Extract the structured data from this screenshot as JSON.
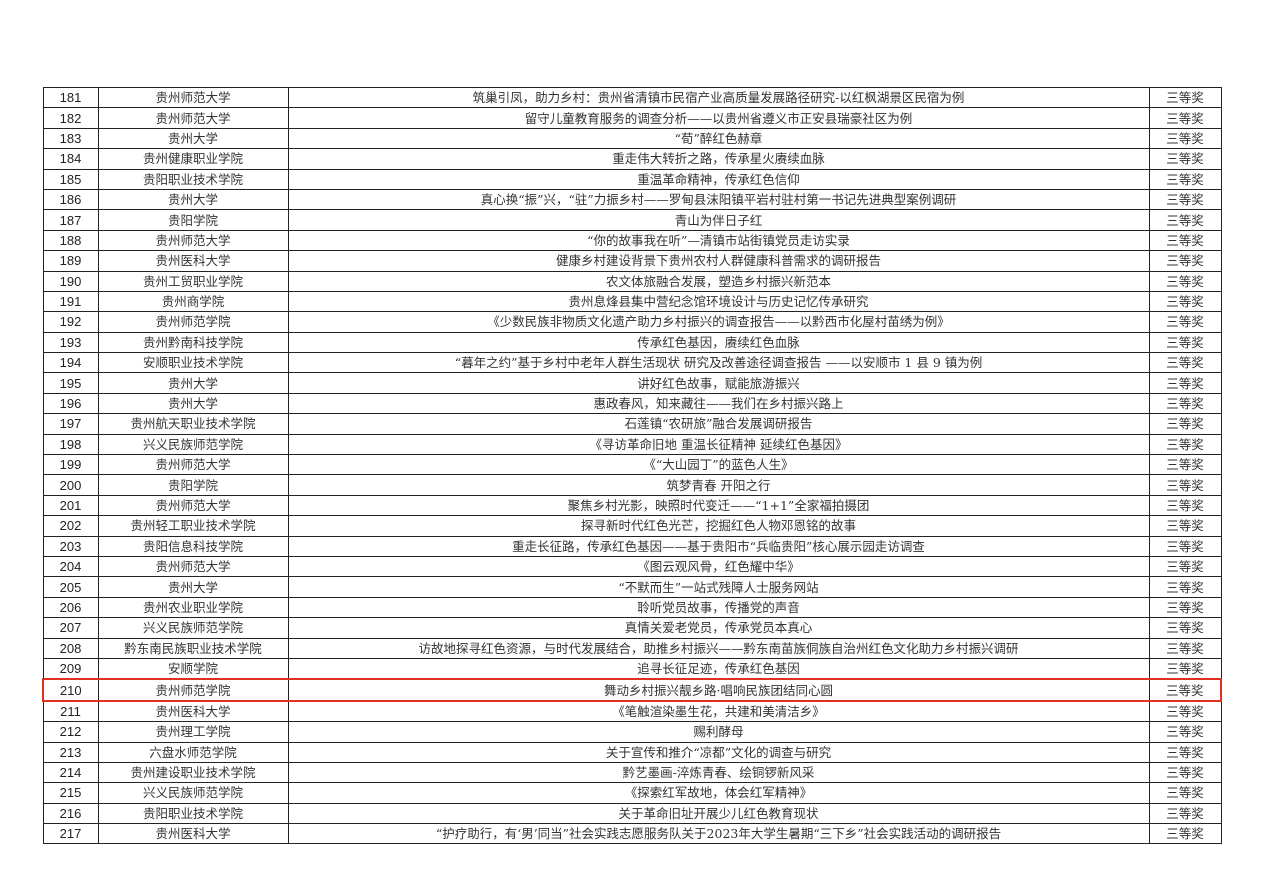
{
  "highlight_color": "#e0301e",
  "highlighted_row": "210",
  "rows": [
    [
      "181",
      "贵州师范大学",
      "筑巢引凤，助力乡村：贵州省清镇市民宿产业高质量发展路径研究-以红枫湖景区民宿为例",
      "三等奖"
    ],
    [
      "182",
      "贵州师范大学",
      "留守儿童教育服务的调查分析——以贵州省遵义市正安县瑞豪社区为例",
      "三等奖"
    ],
    [
      "183",
      "贵州大学",
      "“荀”醉红色赫章",
      "三等奖"
    ],
    [
      "184",
      "贵州健康职业学院",
      "重走伟大转折之路，传承星火赓续血脉",
      "三等奖"
    ],
    [
      "185",
      "贵阳职业技术学院",
      "重温革命精神，传承红色信仰",
      "三等奖"
    ],
    [
      "186",
      "贵州大学",
      "真心换“振”兴，“驻”力振乡村——罗甸县沫阳镇平岩村驻村第一书记先进典型案例调研",
      "三等奖"
    ],
    [
      "187",
      "贵阳学院",
      "青山为伴日子红",
      "三等奖"
    ],
    [
      "188",
      "贵州师范大学",
      "“你的故事我在听”—清镇市站街镇党员走访实录",
      "三等奖"
    ],
    [
      "189",
      "贵州医科大学",
      "健康乡村建设背景下贵州农村人群健康科普需求的调研报告",
      "三等奖"
    ],
    [
      "190",
      "贵州工贸职业学院",
      "农文体旅融合发展，塑造乡村振兴新范本",
      "三等奖"
    ],
    [
      "191",
      "贵州商学院",
      "贵州息烽县集中营纪念馆环境设计与历史记忆传承研究",
      "三等奖"
    ],
    [
      "192",
      "贵州师范学院",
      "《少数民族非物质文化遗产助力乡村振兴的调查报告——以黔西市化屋村苗绣为例》",
      "三等奖"
    ],
    [
      "193",
      "贵州黔南科技学院",
      "传承红色基因，赓续红色血脉",
      "三等奖"
    ],
    [
      "194",
      "安顺职业技术学院",
      "“暮年之约”基于乡村中老年人群生活现状 研究及改善途径调查报告 ——以安顺市 1 县 9 镇为例",
      "三等奖"
    ],
    [
      "195",
      "贵州大学",
      "讲好红色故事，赋能旅游振兴",
      "三等奖"
    ],
    [
      "196",
      "贵州大学",
      "惠政春风，知来藏往——我们在乡村振兴路上",
      "三等奖"
    ],
    [
      "197",
      "贵州航天职业技术学院",
      "石莲镇“农研旅”融合发展调研报告",
      "三等奖"
    ],
    [
      "198",
      "兴义民族师范学院",
      "《寻访革命旧地 重温长征精神 延续红色基因》",
      "三等奖"
    ],
    [
      "199",
      "贵州师范大学",
      "《“大山园丁”的蓝色人生》",
      "三等奖"
    ],
    [
      "200",
      "贵阳学院",
      "筑梦青春 开阳之行",
      "三等奖"
    ],
    [
      "201",
      "贵州师范大学",
      "聚焦乡村光影，映照时代变迁——“1+1”全家福拍摄团",
      "三等奖"
    ],
    [
      "202",
      "贵州轻工职业技术学院",
      "探寻新时代红色光芒，挖掘红色人物邓恩铭的故事",
      "三等奖"
    ],
    [
      "203",
      "贵阳信息科技学院",
      "重走长征路，传承红色基因——基于贵阳市“兵临贵阳”核心展示园走访调查",
      "三等奖"
    ],
    [
      "204",
      "贵州师范大学",
      "《图云观风骨，红色耀中华》",
      "三等奖"
    ],
    [
      "205",
      "贵州大学",
      "“不默而生”一站式残障人士服务网站",
      "三等奖"
    ],
    [
      "206",
      "贵州农业职业学院",
      "聆听党员故事，传播党的声音",
      "三等奖"
    ],
    [
      "207",
      "兴义民族师范学院",
      "真情关爱老党员，传承党员本真心",
      "三等奖"
    ],
    [
      "208",
      "黔东南民族职业技术学院",
      "访故地探寻红色资源，与时代发展结合，助推乡村振兴——黔东南苗族侗族自治州红色文化助力乡村振兴调研",
      "三等奖"
    ],
    [
      "209",
      "安顺学院",
      "追寻长征足迹，传承红色基因",
      "三等奖"
    ],
    [
      "210",
      "贵州师范学院",
      "舞动乡村振兴靓乡路·唱响民族团结同心圆",
      "三等奖"
    ],
    [
      "211",
      "贵州医科大学",
      "《笔触渲染墨生花，共建和美清洁乡》",
      "三等奖"
    ],
    [
      "212",
      "贵州理工学院",
      "赐利酵母",
      "三等奖"
    ],
    [
      "213",
      "六盘水师范学院",
      "关于宣传和推介“凉都”文化的调查与研究",
      "三等奖"
    ],
    [
      "214",
      "贵州建设职业技术学院",
      "黔艺墨画-淬炼青春、绘铜锣新风采",
      "三等奖"
    ],
    [
      "215",
      "兴义民族师范学院",
      "《探索红军故地，体会红军精神》",
      "三等奖"
    ],
    [
      "216",
      "贵阳职业技术学院",
      "关于革命旧址开展少儿红色教育现状",
      "三等奖"
    ],
    [
      "217",
      "贵州医科大学",
      "“护疗助行，有‘男’同当”社会实践志愿服务队关于2023年大学生暑期“三下乡”社会实践活动的调研报告",
      "三等奖"
    ]
  ]
}
